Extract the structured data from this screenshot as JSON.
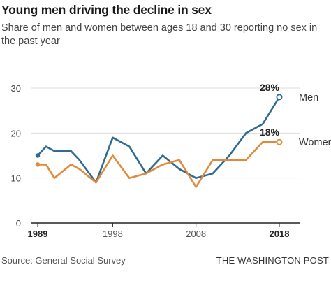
{
  "header": {
    "title": "Young men driving the decline in sex",
    "subtitle": "Share of men and women between ages 18 and 30 reporting no sex in the past year"
  },
  "footer": {
    "source": "Source: General Social Survey",
    "credit": "THE WASHINGTON POST"
  },
  "chart_data": {
    "type": "line",
    "title": "Young men driving the decline in sex",
    "subtitle": "Share of men and women between ages 18 and 30 reporting no sex in the past year",
    "xlabel": "",
    "ylabel": "",
    "ylim": [
      0,
      30
    ],
    "xlim": [
      1989,
      2018
    ],
    "y_ticks": [
      0,
      10,
      20,
      30
    ],
    "x_ticks": [
      1989,
      1998,
      2008,
      2018
    ],
    "grid": "horizontal",
    "colors": {
      "Men": "#2e6a92",
      "Women": "#e08a3a"
    },
    "series": [
      {
        "name": "Men",
        "end_label": "28%",
        "x": [
          1989,
          1990,
          1991,
          1993,
          1994,
          1996,
          1998,
          2000,
          2002,
          2004,
          2006,
          2008,
          2010,
          2012,
          2014,
          2016,
          2018
        ],
        "y": [
          15,
          17,
          16,
          16,
          14,
          9,
          19,
          17,
          11,
          15,
          12,
          10,
          11,
          15,
          20,
          22,
          28
        ]
      },
      {
        "name": "Women",
        "end_label": "18%",
        "x": [
          1989,
          1990,
          1991,
          1993,
          1994,
          1996,
          1998,
          2000,
          2002,
          2004,
          2006,
          2008,
          2010,
          2012,
          2014,
          2016,
          2018
        ],
        "y": [
          13,
          13,
          10,
          13,
          12,
          9,
          15,
          10,
          11,
          13,
          14,
          8,
          14,
          14,
          14,
          18,
          18
        ]
      }
    ]
  }
}
